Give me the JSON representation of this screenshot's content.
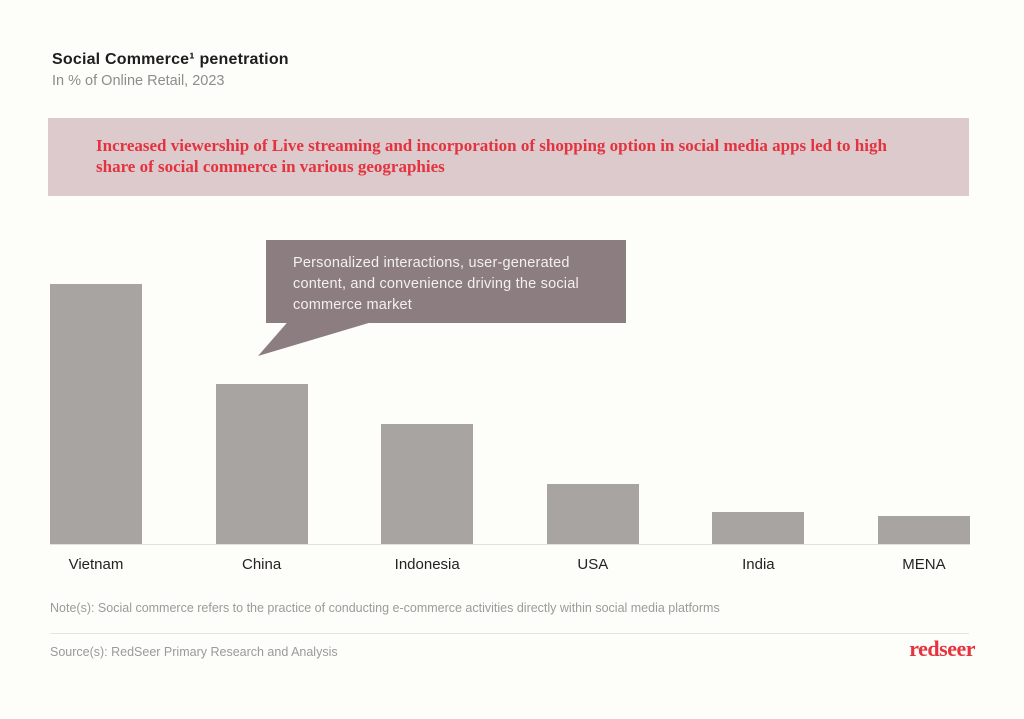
{
  "header": {
    "title": "Social Commerce¹ penetration",
    "subtitle": "In % of Online Retail, 2023"
  },
  "banner": {
    "text": "Increased viewership of Live streaming and incorporation of shopping option in social media apps led to high share of social commerce in various geographies",
    "bg_color": "#dccacd",
    "text_color": "#e4323e"
  },
  "callout": {
    "text": "Personalized interactions, user-generated content, and convenience driving the social commerce market",
    "bg_color": "#8c7d80",
    "text_color": "#f3f0ef"
  },
  "chart_data": {
    "type": "bar",
    "title": "Social Commerce¹ penetration",
    "subtitle": "In % of Online Retail, 2023",
    "xlabel": "",
    "ylabel": "% of Online Retail",
    "categories": [
      "Vietnam",
      "China",
      "Indonesia",
      "USA",
      "India",
      "MENA"
    ],
    "values": [
      65,
      40,
      30,
      15,
      8,
      7
    ],
    "value_labels_shown": false,
    "ylim": [
      0,
      65
    ],
    "gridlines": false,
    "legend": "none",
    "bar_color": "#a8a4a2",
    "axis_line_color": "#e3e1de",
    "label_color": "#252222"
  },
  "footer": {
    "note": "Note(s): Social commerce refers to the practice of conducting e-commerce activities directly within social media platforms",
    "source": "Source(s): RedSeer Primary Research and Analysis",
    "logo_text": "redseer",
    "logo_color": "#e5343f"
  }
}
